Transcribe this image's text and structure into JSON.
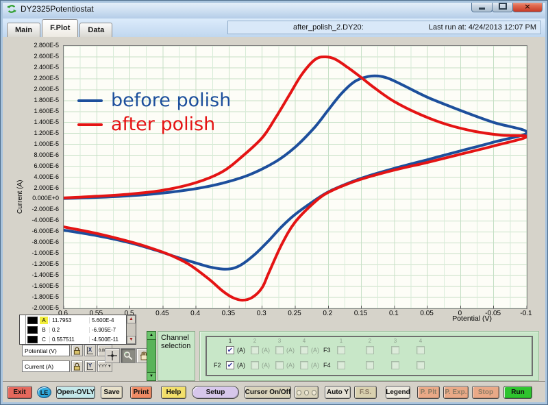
{
  "window": {
    "title": "DY2325Potentiostat",
    "controls": [
      "minimize",
      "maximize",
      "close"
    ]
  },
  "tabs": [
    {
      "label": "Main",
      "active": false
    },
    {
      "label": "F.Plot",
      "active": true
    },
    {
      "label": "Data",
      "active": false
    }
  ],
  "header": {
    "filename": "after_polish_2.DY20:",
    "last_run": "Last run at: 4/24/2013   12:07 PM"
  },
  "chart_data": {
    "type": "line",
    "title": "",
    "xlabel": "Potential (V)",
    "ylabel": "Current (A)",
    "xlim": [
      0.6,
      -0.1
    ],
    "ylim": [
      2.8e-05,
      -2e-05
    ],
    "x_ticks": [
      "0.6",
      "0.55",
      "0.5",
      "0.45",
      "0.4",
      "0.35",
      "0.3",
      "0.25",
      "0.2",
      "0.15",
      "0.1",
      "0.05",
      "0",
      "-0.05",
      "-0.1"
    ],
    "y_ticks": [
      "2.800E-5",
      "2.600E-5",
      "2.400E-5",
      "2.200E-5",
      "2.000E-5",
      "1.800E-5",
      "1.600E-5",
      "1.400E-5",
      "1.200E-5",
      "1.000E-5",
      "8.000E-6",
      "6.000E-6",
      "4.000E-6",
      "2.000E-6",
      "0.000E+0",
      "-2.000E-6",
      "-4.000E-6",
      "-6.000E-6",
      "-8.000E-6",
      "-1.000E-5",
      "-1.200E-5",
      "-1.400E-5",
      "-1.600E-5",
      "-1.800E-5",
      "-2.000E-5"
    ],
    "grid": {
      "on": true,
      "color_major": "#c6e0c6",
      "color_minor": "#d8ecd8",
      "x_step": 0.025,
      "y_step": 2e-06
    },
    "legend": {
      "position": "top-left-inside",
      "items": [
        {
          "label": "before polish",
          "color": "#1d4f9c"
        },
        {
          "label": "after polish",
          "color": "#e41414"
        }
      ]
    },
    "series": [
      {
        "name": "before polish",
        "color": "#1d4f9c",
        "points": [
          [
            0.6,
            1e-07
          ],
          [
            0.55,
            3e-07
          ],
          [
            0.5,
            6e-07
          ],
          [
            0.45,
            1.1e-06
          ],
          [
            0.4,
            1.9e-06
          ],
          [
            0.36,
            2.9e-06
          ],
          [
            0.32,
            4.4e-06
          ],
          [
            0.28,
            6.8e-06
          ],
          [
            0.25,
            9.5e-06
          ],
          [
            0.22,
            1.32e-05
          ],
          [
            0.2,
            1.63e-05
          ],
          [
            0.18,
            1.93e-05
          ],
          [
            0.16,
            2.15e-05
          ],
          [
            0.14,
            2.24e-05
          ],
          [
            0.125,
            2.25e-05
          ],
          [
            0.11,
            2.21e-05
          ],
          [
            0.09,
            2.1e-05
          ],
          [
            0.05,
            1.86e-05
          ],
          [
            0.0,
            1.62e-05
          ],
          [
            -0.05,
            1.4e-05
          ],
          [
            -0.1,
            1.22e-05
          ],
          [
            -0.05,
            1.04e-05
          ],
          [
            0.0,
            8.8e-06
          ],
          [
            0.05,
            7.2e-06
          ],
          [
            0.1,
            5.6e-06
          ],
          [
            0.14,
            4.2e-06
          ],
          [
            0.17,
            2.9e-06
          ],
          [
            0.2,
            1.3e-06
          ],
          [
            0.22,
            -2e-07
          ],
          [
            0.25,
            -2.8e-06
          ],
          [
            0.27,
            -5e-06
          ],
          [
            0.29,
            -7.6e-06
          ],
          [
            0.31,
            -1e-05
          ],
          [
            0.33,
            -1.19e-05
          ],
          [
            0.345,
            -1.27e-05
          ],
          [
            0.36,
            -1.28e-05
          ],
          [
            0.38,
            -1.24e-05
          ],
          [
            0.4,
            -1.17e-05
          ],
          [
            0.43,
            -1.06e-05
          ],
          [
            0.46,
            -9.4e-06
          ],
          [
            0.5,
            -8e-06
          ],
          [
            0.55,
            -6.7e-06
          ],
          [
            0.6,
            -5.7e-06
          ]
        ]
      },
      {
        "name": "after polish",
        "color": "#e41414",
        "points": [
          [
            0.6,
            2e-07
          ],
          [
            0.55,
            5e-07
          ],
          [
            0.5,
            9e-07
          ],
          [
            0.45,
            1.6e-06
          ],
          [
            0.4,
            3e-06
          ],
          [
            0.36,
            5e-06
          ],
          [
            0.33,
            7.8e-06
          ],
          [
            0.3,
            1.12e-05
          ],
          [
            0.28,
            1.48e-05
          ],
          [
            0.26,
            1.88e-05
          ],
          [
            0.24,
            2.28e-05
          ],
          [
            0.22,
            2.55e-05
          ],
          [
            0.205,
            2.6e-05
          ],
          [
            0.19,
            2.56e-05
          ],
          [
            0.17,
            2.4e-05
          ],
          [
            0.15,
            2.22e-05
          ],
          [
            0.13,
            2.03e-05
          ],
          [
            0.1,
            1.78e-05
          ],
          [
            0.06,
            1.54e-05
          ],
          [
            0.02,
            1.36e-05
          ],
          [
            -0.02,
            1.24e-05
          ],
          [
            -0.06,
            1.17e-05
          ],
          [
            -0.1,
            1.14e-05
          ],
          [
            -0.05,
            9.7e-06
          ],
          [
            0.0,
            8.2e-06
          ],
          [
            0.05,
            6.7e-06
          ],
          [
            0.1,
            5.3e-06
          ],
          [
            0.14,
            4e-06
          ],
          [
            0.17,
            2.8e-06
          ],
          [
            0.2,
            1.2e-06
          ],
          [
            0.22,
            -5e-07
          ],
          [
            0.25,
            -4.2e-06
          ],
          [
            0.27,
            -8.2e-06
          ],
          [
            0.29,
            -1.35e-05
          ],
          [
            0.3,
            -1.62e-05
          ],
          [
            0.315,
            -1.8e-05
          ],
          [
            0.33,
            -1.85e-05
          ],
          [
            0.345,
            -1.8e-05
          ],
          [
            0.36,
            -1.68e-05
          ],
          [
            0.38,
            -1.47e-05
          ],
          [
            0.41,
            -1.2e-05
          ],
          [
            0.44,
            -1.02e-05
          ],
          [
            0.47,
            -8.9e-06
          ],
          [
            0.5,
            -7.8e-06
          ],
          [
            0.55,
            -6.3e-06
          ],
          [
            0.6,
            -5.1e-06
          ]
        ]
      }
    ]
  },
  "cursor_table": {
    "rows": [
      {
        "name": "A",
        "x": "11.7953",
        "y": "5.600E-4",
        "selected": true
      },
      {
        "name": "B",
        "x": "0.2",
        "y": "-6.905E-7",
        "selected": false
      },
      {
        "name": "C",
        "x": "0.557511",
        "y": "-4.500E-11",
        "selected": false
      }
    ]
  },
  "axis_controls": {
    "x_field": "Potential (V)",
    "y_field": "Current (A)",
    "x_axis_letter": "X",
    "y_axis_letter": "Y",
    "x_format": "8.88",
    "y_format": "Y.YY"
  },
  "graph_tools": [
    "crosshair-tool",
    "zoom-tool",
    "pan-tool"
  ],
  "channels": {
    "label": "Channel selection",
    "group1": {
      "headers": [
        "1",
        "2",
        "3",
        "4"
      ],
      "cb_label": "(A)",
      "row1_checked": [
        true,
        false,
        false,
        false
      ],
      "row1_enabled": [
        true,
        false,
        false,
        false
      ],
      "row2_prefix": "F2",
      "row2_checked": [
        true,
        false,
        false,
        false
      ],
      "row2_enabled": [
        true,
        false,
        false,
        false
      ]
    },
    "group2": {
      "headers": [
        "1",
        "2",
        "3",
        "4"
      ],
      "row1_prefix": "F3",
      "row2_prefix": "F4",
      "row1_checked": [
        false,
        false,
        false,
        false
      ],
      "row2_checked": [
        false,
        false,
        false,
        false
      ]
    }
  },
  "toolbar": {
    "buttons": [
      {
        "id": "exit",
        "label": "Exit",
        "bg": "#e4685c",
        "kind": "button",
        "disabled": false
      },
      {
        "id": "le",
        "label": "LE",
        "bg": "#2fa9dd",
        "kind": "ellipse",
        "disabled": false
      },
      {
        "id": "open-ovly",
        "label": "Open-OVLY",
        "bg": "#c3e7e9",
        "kind": "button",
        "disabled": false
      },
      {
        "id": "save",
        "label": "Save",
        "bg": "#e7e0c9",
        "kind": "button",
        "disabled": false
      },
      {
        "id": "print",
        "label": "Print",
        "bg": "#ef8b65",
        "kind": "button",
        "disabled": false
      },
      {
        "id": "help",
        "label": "Help",
        "bg": "#f2df6b",
        "kind": "button",
        "disabled": false
      },
      {
        "id": "setup",
        "label": "Setup",
        "bg": "#d7c7eb",
        "kind": "pill",
        "disabled": false
      },
      {
        "id": "cursor-onoff",
        "label": "Cursor On/Off",
        "bg": "#d9d3bb",
        "kind": "button",
        "disabled": false
      },
      {
        "id": "cursor-leds",
        "label": "",
        "bg": "#d9d3bb",
        "kind": "leds",
        "led_count": 3,
        "disabled": false
      },
      {
        "id": "auto-y",
        "label": "Auto Y",
        "bg": "#e5e1d5",
        "kind": "button",
        "disabled": false
      },
      {
        "id": "fs",
        "label": "F.S.",
        "bg": "#d9d1af",
        "kind": "button",
        "disabled": true
      },
      {
        "id": "legend",
        "label": "Legend",
        "bg": "#edeae0",
        "kind": "button",
        "disabled": false
      },
      {
        "id": "p-plt",
        "label": "P. Plt",
        "bg": "#e9a987",
        "kind": "button",
        "disabled": true
      },
      {
        "id": "p-exp",
        "label": "P. Exp.",
        "bg": "#e9a987",
        "kind": "button",
        "disabled": true
      },
      {
        "id": "stop",
        "label": "Stop",
        "bg": "#e9a987",
        "kind": "button",
        "disabled": true
      },
      {
        "id": "run",
        "label": "Run",
        "bg": "#2ec42e",
        "kind": "button",
        "disabled": false
      }
    ]
  }
}
